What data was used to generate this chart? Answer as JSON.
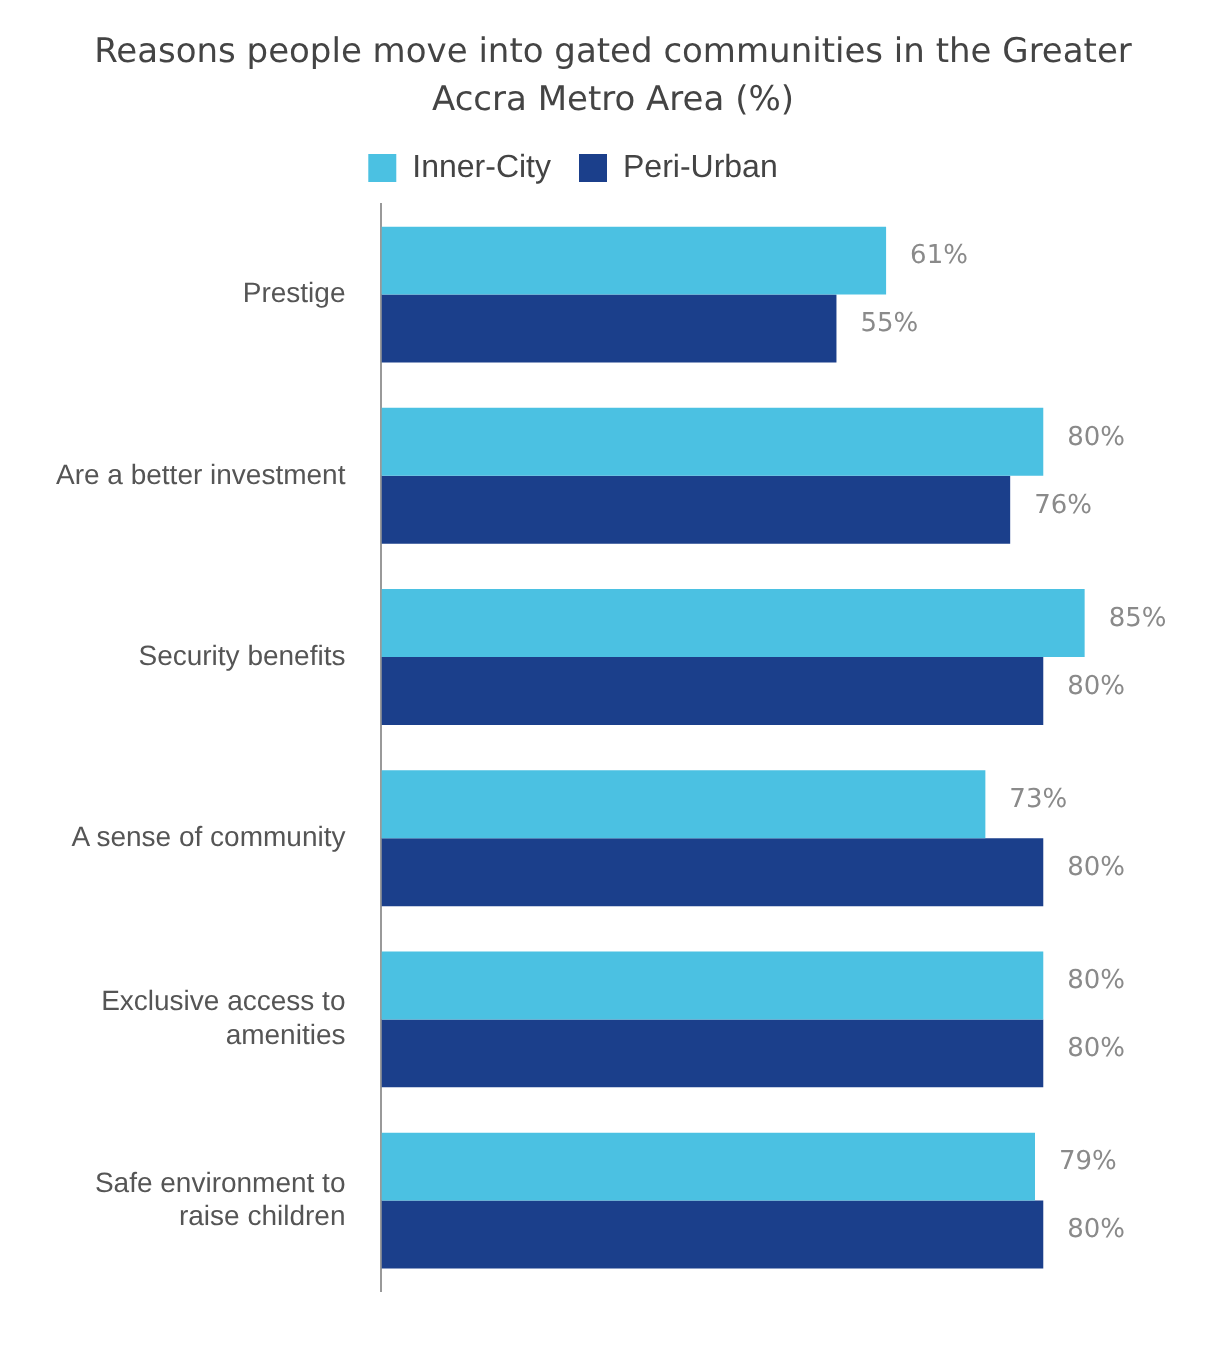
{
  "chart_data": {
    "type": "bar",
    "orientation": "horizontal",
    "title": "Reasons people move into gated communities in the Greater Accra Metro Area (%)",
    "categories": [
      "Prestige",
      "Are a better investment",
      "Security benefits",
      "A sense of community",
      "Exclusive access to amenities",
      "Safe environment to raise children"
    ],
    "series": [
      {
        "name": "Inner-City",
        "color": "#4bc1e2",
        "values": [
          61,
          80,
          85,
          73,
          80,
          79
        ],
        "value_labels": [
          "61%",
          "80%",
          "85%",
          "73%",
          "80%",
          "79%"
        ]
      },
      {
        "name": "Peri-Urban",
        "color": "#1b3f8b",
        "values": [
          55,
          76,
          80,
          80,
          80,
          80
        ],
        "value_labels": [
          "55%",
          "76%",
          "80%",
          "80%",
          "80%",
          "80%"
        ]
      }
    ],
    "legend": "top"
  }
}
